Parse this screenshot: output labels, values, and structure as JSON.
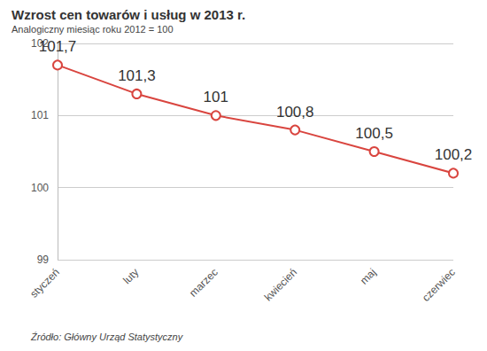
{
  "chart_data": {
    "type": "line",
    "title": "Wzrost cen towarów i usług w 2013 r.",
    "subtitle": "Analogiczny miesiąc roku 2012 = 100",
    "source": "Źródło: Główny Urząd Statystyczny",
    "categories": [
      "styczeń",
      "luty",
      "marzec",
      "kwiecień",
      "maj",
      "czerwiec"
    ],
    "values": [
      101.7,
      101.3,
      101,
      100.8,
      100.5,
      100.2
    ],
    "value_labels": [
      "101,7",
      "101,3",
      "101",
      "100,8",
      "100,5",
      "100,2"
    ],
    "color": "#d9453f",
    "marker": "circle",
    "ylim": [
      99,
      102
    ],
    "yticks": [
      99,
      100,
      101,
      102
    ],
    "grid": true,
    "data_labels": true
  }
}
